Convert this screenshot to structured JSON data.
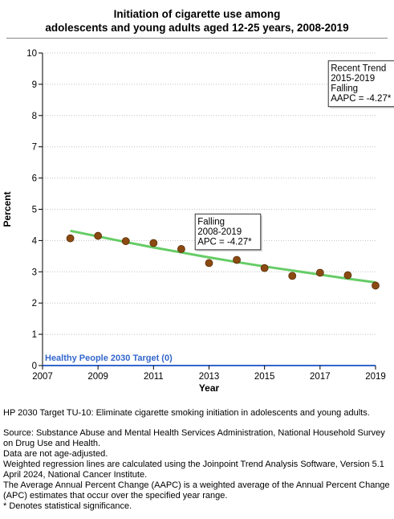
{
  "title_line1": "Initiation of cigarette use among",
  "title_line2": "adolescents and young adults aged 12-25 years, 2008-2019",
  "colors": {
    "trend_line": "#66cc66",
    "points": "#8b4a12",
    "target_line": "#3366cc",
    "target_text": "#3366cc",
    "axis": "#000000",
    "grid": "#c0c0c0"
  },
  "chart_data": {
    "type": "scatter",
    "title": "Initiation of cigarette use among adolescents and young adults aged 12-25 years, 2008-2019",
    "xlabel": "Year",
    "ylabel": "Percent",
    "xlim": [
      2007,
      2019
    ],
    "ylim": [
      0,
      10
    ],
    "x_ticks": [
      2007,
      2009,
      2011,
      2013,
      2015,
      2017,
      2019
    ],
    "y_ticks": [
      0,
      1,
      2,
      3,
      4,
      5,
      6,
      7,
      8,
      9,
      10
    ],
    "grid": "horizontal",
    "series": [
      {
        "type": "scatter",
        "x": [
          2008,
          2009,
          2010,
          2011,
          2012,
          2013,
          2014,
          2015,
          2016,
          2017,
          2018,
          2019
        ],
        "y": [
          4.07,
          4.15,
          3.98,
          3.92,
          3.73,
          3.28,
          3.38,
          3.12,
          2.87,
          2.97,
          2.89,
          2.56
        ]
      },
      {
        "type": "line",
        "x": [
          2008,
          2009,
          2010,
          2011,
          2012,
          2013,
          2014,
          2015,
          2016,
          2017,
          2018,
          2019
        ],
        "y": [
          4.31,
          4.13,
          3.95,
          3.78,
          3.62,
          3.46,
          3.31,
          3.17,
          3.04,
          2.91,
          2.78,
          2.66
        ]
      }
    ],
    "target": {
      "label": "Healthy People 2030 Target (0)",
      "value": 0
    },
    "annotations": [
      {
        "lines": [
          "Falling",
          "2008-2019",
          "APC = -4.27*"
        ],
        "x": 2012.5,
        "y": 4.85
      },
      {
        "lines": [
          "Recent Trend",
          "2015-2019",
          "Falling",
          "AAPC = -4.27*"
        ],
        "x": 2017.3,
        "y": 9.75
      }
    ]
  },
  "notes": [
    "HP 2030 Target TU-10: Eliminate cigarette smoking initiation in adolescents and young adults.",
    "Source: Substance Abuse and Mental Health Services Administration, National Household Survey on Drug Use and Health.",
    "Data are not age-adjusted.",
    "Weighted regression lines are calculated using the Joinpoint Trend Analysis Software, Version 5.1 April 2024, National Cancer Institute.",
    "The Average Annual Percent Change (AAPC) is a weighted average of the Annual Percent Change (APC) estimates that occur over the specified year range.",
    "* Denotes statistical significance."
  ]
}
